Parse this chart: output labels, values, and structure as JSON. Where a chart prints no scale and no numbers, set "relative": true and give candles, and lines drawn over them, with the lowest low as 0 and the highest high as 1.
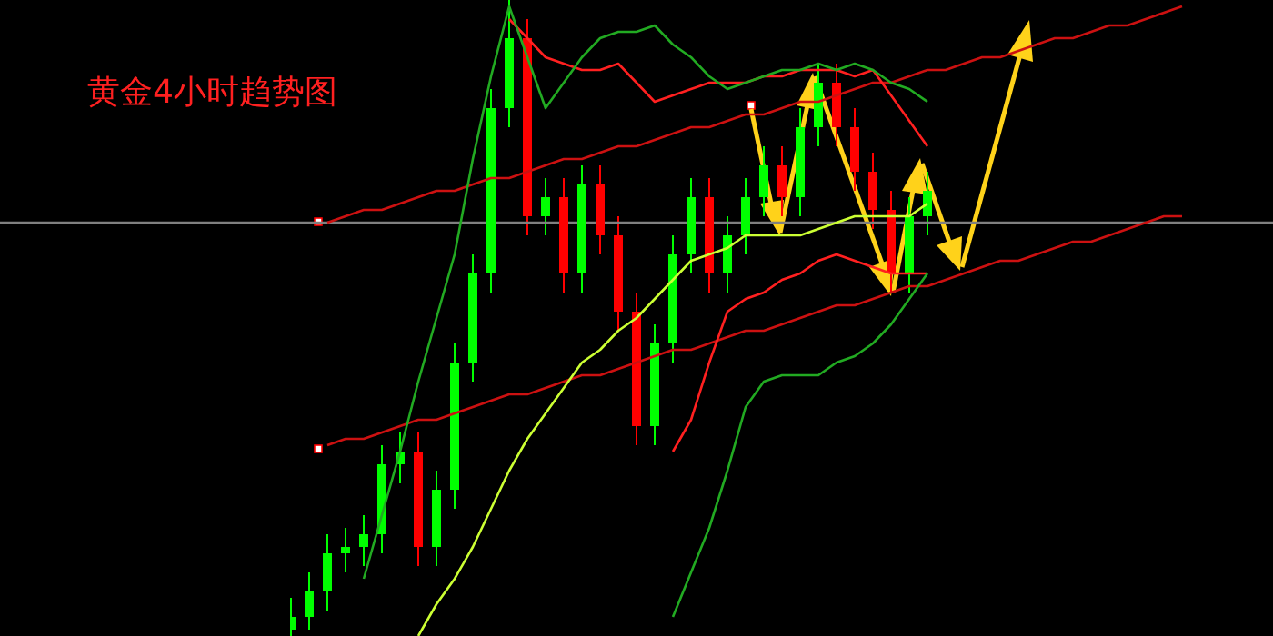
{
  "chart_data": {
    "type": "candlestick",
    "title": "黄金4小时趋势图",
    "relative": true,
    "categories": [
      null,
      null,
      null,
      null,
      null,
      null,
      null,
      null,
      null,
      null,
      null,
      null,
      null,
      null,
      null,
      null,
      null,
      null,
      null,
      null,
      null,
      null,
      null,
      null,
      null,
      null,
      null,
      null,
      null,
      null,
      null,
      null,
      null,
      null,
      null,
      null,
      null,
      null,
      null,
      null,
      null,
      null,
      null,
      null,
      null,
      null,
      null,
      null,
      null,
      null
    ],
    "ohlc": [
      [
        0.01,
        0.06,
        0,
        0.03
      ],
      [
        0.03,
        0.1,
        0.01,
        0.07
      ],
      [
        0.07,
        0.16,
        0.04,
        0.13
      ],
      [
        0.13,
        0.17,
        0.1,
        0.14
      ],
      [
        0.14,
        0.19,
        0.11,
        0.16
      ],
      [
        0.16,
        0.3,
        0.13,
        0.27
      ],
      [
        0.27,
        0.32,
        0.24,
        0.29
      ],
      [
        0.29,
        0.32,
        0.11,
        0.14
      ],
      [
        0.14,
        0.26,
        0.11,
        0.23
      ],
      [
        0.23,
        0.46,
        0.2,
        0.43
      ],
      [
        0.43,
        0.6,
        0.4,
        0.57
      ],
      [
        0.57,
        0.86,
        0.54,
        0.83
      ],
      [
        0.83,
        1,
        0.8,
        0.94
      ],
      [
        0.94,
        0.97,
        0.63,
        0.66
      ],
      [
        0.66,
        0.72,
        0.63,
        0.69
      ],
      [
        0.69,
        0.72,
        0.54,
        0.57
      ],
      [
        0.57,
        0.74,
        0.54,
        0.71
      ],
      [
        0.71,
        0.74,
        0.6,
        0.63
      ],
      [
        0.63,
        0.66,
        0.48,
        0.51
      ],
      [
        0.51,
        0.54,
        0.3,
        0.33
      ],
      [
        0.33,
        0.49,
        0.3,
        0.46
      ],
      [
        0.46,
        0.63,
        0.43,
        0.6
      ],
      [
        0.6,
        0.72,
        0.57,
        0.69
      ],
      [
        0.69,
        0.72,
        0.54,
        0.57
      ],
      [
        0.57,
        0.66,
        0.54,
        0.63
      ],
      [
        0.63,
        0.72,
        0.6,
        0.69
      ],
      [
        0.69,
        0.77,
        0.66,
        0.74
      ],
      [
        0.74,
        0.77,
        0.66,
        0.69
      ],
      [
        0.69,
        0.83,
        0.66,
        0.8
      ],
      [
        0.8,
        0.9,
        0.77,
        0.87
      ],
      [
        0.87,
        0.9,
        0.77,
        0.8
      ],
      [
        0.8,
        0.83,
        0.7,
        0.73
      ],
      [
        0.73,
        0.76,
        0.64,
        0.67
      ],
      [
        0.67,
        0.7,
        0.54,
        0.57
      ],
      [
        0.57,
        0.69,
        0.54,
        0.66
      ],
      [
        0.66,
        0.73,
        0.63,
        0.7
      ],
      null,
      null,
      null,
      null,
      null,
      null,
      null,
      null,
      null,
      null,
      null,
      null,
      null,
      null
    ],
    "series": [
      {
        "type": "line",
        "color": "#ccff33",
        "values": [
          null,
          null,
          null,
          null,
          null,
          null,
          null,
          0,
          0.05,
          0.09,
          0.14,
          0.2,
          0.26,
          0.31,
          0.35,
          0.39,
          0.43,
          0.45,
          0.48,
          0.5,
          0.53,
          0.56,
          0.59,
          0.6,
          0.61,
          0.63,
          0.63,
          0.63,
          0.63,
          0.64,
          0.65,
          0.66,
          0.66,
          0.66,
          0.66,
          0.68,
          null,
          null,
          null,
          null,
          null,
          null,
          null,
          null,
          null,
          null,
          null,
          null,
          null,
          null
        ]
      },
      {
        "type": "line",
        "color": "#22aa22",
        "values": [
          null,
          null,
          null,
          null,
          0.09,
          0.19,
          0.29,
          0.4,
          0.5,
          0.6,
          0.75,
          0.88,
          0.99,
          0.91,
          0.83,
          0.87,
          0.91,
          0.94,
          0.95,
          0.95,
          0.96,
          0.93,
          0.91,
          0.88,
          0.86,
          0.87,
          0.88,
          0.89,
          0.89,
          0.9,
          0.89,
          0.9,
          0.89,
          0.87,
          0.86,
          0.84,
          null,
          null,
          null,
          null,
          null,
          null,
          null,
          null,
          null,
          null,
          null,
          null,
          null,
          null
        ]
      },
      {
        "type": "line",
        "color": "#22aa22",
        "values": [
          null,
          null,
          null,
          null,
          null,
          null,
          null,
          null,
          null,
          null,
          null,
          null,
          null,
          null,
          null,
          null,
          null,
          null,
          null,
          null,
          null,
          0.03,
          0.1,
          0.17,
          0.26,
          0.36,
          0.4,
          0.41,
          0.41,
          0.41,
          0.43,
          0.44,
          0.46,
          0.49,
          0.53,
          0.57,
          null,
          null,
          null,
          null,
          null,
          null,
          null,
          null,
          null,
          null,
          null,
          null,
          null,
          null
        ]
      },
      {
        "type": "line",
        "color": "#ff2020",
        "values": [
          null,
          null,
          null,
          null,
          null,
          null,
          null,
          null,
          null,
          null,
          null,
          null,
          0.97,
          0.94,
          0.91,
          0.9,
          0.89,
          0.89,
          0.9,
          0.87,
          0.84,
          0.85,
          0.86,
          0.87,
          0.87,
          0.87,
          0.88,
          0.88,
          0.89,
          0.89,
          0.89,
          0.88,
          0.89,
          0.85,
          0.81,
          0.77,
          null,
          null,
          null,
          null,
          null,
          null,
          null,
          null,
          null,
          null,
          null,
          null,
          null,
          null
        ]
      },
      {
        "type": "line",
        "color": "#ff2020",
        "values": [
          null,
          null,
          null,
          null,
          null,
          null,
          null,
          null,
          null,
          null,
          null,
          null,
          null,
          null,
          null,
          null,
          null,
          null,
          null,
          null,
          null,
          0.29,
          0.34,
          0.43,
          0.51,
          0.53,
          0.54,
          0.56,
          0.57,
          0.59,
          0.6,
          0.59,
          0.58,
          0.57,
          0.57,
          0.57,
          null,
          null,
          null,
          null,
          null,
          null,
          null,
          null,
          null,
          null,
          null,
          null,
          null,
          null
        ]
      },
      {
        "type": "line",
        "color": "#cc1111",
        "values": [
          null,
          null,
          0.65,
          0.66,
          0.67,
          0.67,
          0.68,
          0.69,
          0.7,
          0.7,
          0.71,
          0.72,
          0.72,
          0.73,
          0.74,
          0.75,
          0.75,
          0.76,
          0.77,
          0.77,
          0.78,
          0.79,
          0.8,
          0.8,
          0.81,
          0.82,
          0.82,
          0.83,
          0.84,
          0.84,
          0.85,
          0.86,
          0.87,
          0.87,
          0.88,
          0.89,
          0.89,
          0.9,
          0.91,
          0.91,
          0.92,
          0.93,
          0.94,
          0.94,
          0.95,
          0.96,
          0.96,
          0.97,
          0.98,
          0.99
        ]
      },
      {
        "type": "line",
        "color": "#cc1111",
        "values": [
          null,
          null,
          0.3,
          0.31,
          0.31,
          0.32,
          0.33,
          0.34,
          0.34,
          0.35,
          0.36,
          0.37,
          0.38,
          0.38,
          0.39,
          0.4,
          0.41,
          0.41,
          0.42,
          0.43,
          0.44,
          0.45,
          0.45,
          0.46,
          0.47,
          0.48,
          0.48,
          0.49,
          0.5,
          0.51,
          0.52,
          0.52,
          0.53,
          0.54,
          0.55,
          0.55,
          0.56,
          0.57,
          0.58,
          0.59,
          0.59,
          0.6,
          0.61,
          0.62,
          0.62,
          0.63,
          0.64,
          0.65,
          0.66,
          0.66
        ]
      }
    ],
    "ref_lines": [
      {
        "axis": "y",
        "value": 0.65,
        "color": "#808080"
      }
    ]
  }
}
